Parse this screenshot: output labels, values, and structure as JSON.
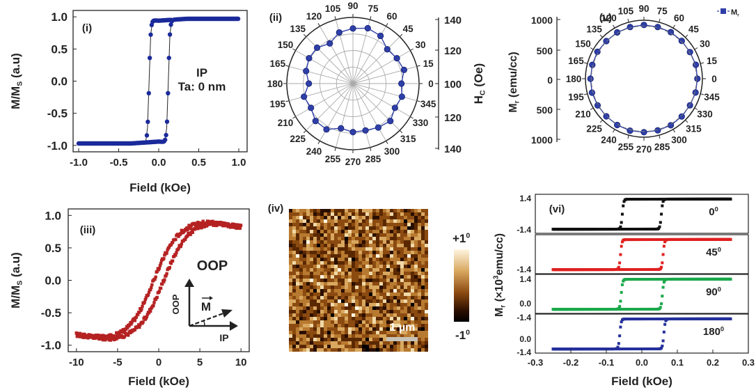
{
  "chart_data": [
    {
      "panel": "(i)",
      "type": "line",
      "xlabel": "Field (kOe)",
      "ylabel": "M/MS (a.u)",
      "ylabel_main": "M/M",
      "ylabel_sub": "S",
      "ylabel_tail": " (a.u)",
      "xlim": [
        -1.0,
        1.0
      ],
      "ylim": [
        -1.1,
        1.1
      ],
      "xticks": [
        "-1.0",
        "-0.5",
        "0.0",
        "0.5",
        "1.0"
      ],
      "yticks": [
        "1.0",
        "0.5",
        "0.0",
        "-0.5",
        "-1.0"
      ],
      "annotations": [
        "IP",
        "Ta: 0 nm"
      ],
      "color": "#1a2a9a",
      "loop": {
        "coercivity": 0.12,
        "saturation_field": 0.35,
        "sat_value": 0.97
      }
    },
    {
      "panel": "(ii)",
      "type": "polar",
      "ylabel": "HC (Oe)",
      "ylabel_main": "H",
      "ylabel_sub": "C",
      "ylabel_tail": " (Oe)",
      "angles": [
        0,
        15,
        30,
        45,
        60,
        75,
        90,
        105,
        120,
        135,
        150,
        165,
        180,
        195,
        210,
        225,
        240,
        255,
        270,
        285,
        300,
        315,
        330,
        345
      ],
      "r_ticks": [
        "140",
        "120",
        "100",
        "120",
        "140"
      ],
      "r_range": [
        80,
        140
      ],
      "values": [
        124,
        128,
        126,
        124,
        130,
        132,
        130,
        128,
        122,
        126,
        126,
        124,
        120,
        126,
        124,
        128,
        128,
        122,
        124,
        124,
        126,
        128,
        124,
        126
      ],
      "color": "#2f3fa8"
    },
    {
      "panel": "(iii)",
      "type": "line",
      "xlabel": "Field (kOe)",
      "ylabel": "M/MS (a.u)",
      "ylabel_main": "M/M",
      "ylabel_sub": "S",
      "ylabel_tail": " (a.u)",
      "xlim": [
        -11,
        11
      ],
      "ylim": [
        -1.1,
        1.1
      ],
      "xticks": [
        "-10",
        "-5",
        "0",
        "5",
        "10"
      ],
      "yticks": [
        "1.0",
        "0.5",
        "0.0",
        "-0.5",
        "-1.0"
      ],
      "annotations": [
        "OOP"
      ],
      "inset": {
        "v_axis": "OOP",
        "h_axis": "IP",
        "vector": "M"
      },
      "color": "#b52222"
    },
    {
      "panel": "(iv)",
      "type": "heatmap",
      "colorbar": {
        "max": "+1",
        "min": "-1",
        "unit": "0"
      },
      "scale_bar": "1 µm"
    },
    {
      "panel": "(v)",
      "type": "polar",
      "ylabel": "Mr (emu/cc)",
      "ylabel_main": "M",
      "ylabel_sub": "r",
      "ylabel_tail": " (emu/cc)",
      "angles": [
        0,
        15,
        30,
        45,
        60,
        75,
        90,
        105,
        120,
        135,
        150,
        165,
        180,
        195,
        210,
        225,
        240,
        255,
        270,
        285,
        300,
        315,
        330,
        345
      ],
      "r_ticks": [
        "1000",
        "500",
        "0",
        "500",
        "1000"
      ],
      "values": [
        960,
        965,
        955,
        960,
        965,
        960,
        965,
        960,
        960,
        955,
        965,
        960,
        960,
        965,
        960,
        955,
        960,
        965,
        960,
        960,
        965,
        960,
        955,
        960
      ],
      "r_range": [
        0,
        1050
      ],
      "legend": "Mr",
      "legend_main": "M",
      "legend_sub": "r",
      "color": "#2f3fa8"
    },
    {
      "panel": "(vi)",
      "type": "line",
      "xlabel": "Field (kOe)",
      "ylabel": "Mr (×10³emu/cc)",
      "ylabel_main": "M",
      "ylabel_sub": "r",
      "ylabel_tail": " (×10",
      "ylabel_sup": "3",
      "ylabel_end": "emu/cc)",
      "xlim": [
        -0.3,
        0.3
      ],
      "ylim": [
        -1.4,
        1.4
      ],
      "xticks": [
        "-0.3",
        "-0.2",
        "-0.1",
        "0.0",
        "0.1",
        "0.2",
        "0.3"
      ],
      "yticks": [
        "1.4",
        "0.0",
        "-1.4"
      ],
      "series": [
        {
          "name": "0",
          "color": "#111111",
          "coercivity": 0.055
        },
        {
          "name": "45",
          "color": "#e02020",
          "coercivity": 0.06
        },
        {
          "name": "90",
          "color": "#1aa84a",
          "coercivity": 0.058
        },
        {
          "name": "180",
          "color": "#24309a",
          "coercivity": 0.062
        }
      ],
      "angle_unit": "0"
    }
  ]
}
